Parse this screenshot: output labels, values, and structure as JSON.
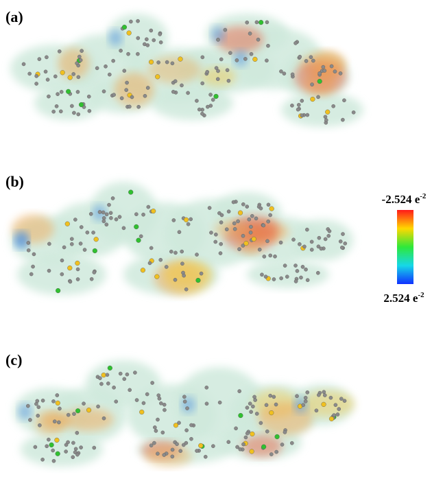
{
  "panels": [
    {
      "label": "(a)"
    },
    {
      "label": "(b)"
    },
    {
      "label": "(c)"
    }
  ],
  "color_scale": {
    "max_label": {
      "text": "-2.524 e",
      "exponent": "-2"
    },
    "min_label": {
      "text": "2.524 e",
      "exponent": "-2"
    }
  }
}
